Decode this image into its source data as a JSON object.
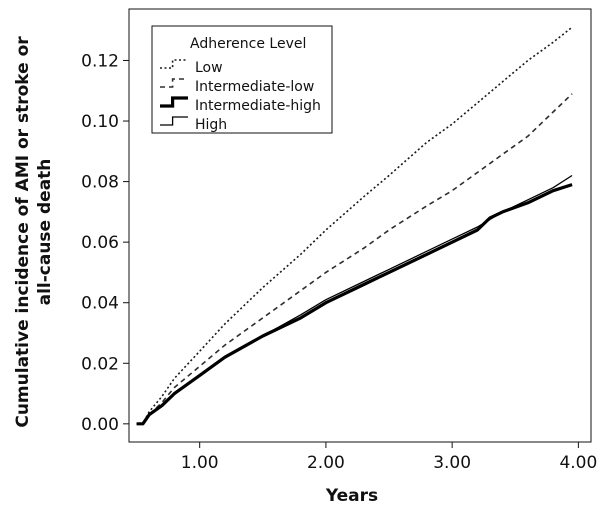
{
  "chart_data": {
    "type": "line",
    "title": "",
    "xlabel": "Years",
    "ylabel_lines": [
      "Cumulative incidence of AMI or stroke or",
      "all-cause death"
    ],
    "xlim": [
      0.44,
      4.1
    ],
    "ylim": [
      -0.006,
      0.137
    ],
    "xticks": [
      1.0,
      2.0,
      3.0,
      4.0
    ],
    "xtick_labels": [
      "1.00",
      "2.00",
      "3.00",
      "4.00"
    ],
    "yticks": [
      0.0,
      0.02,
      0.04,
      0.06,
      0.08,
      0.1,
      0.12
    ],
    "ytick_labels": [
      "0.00",
      "0.02",
      "0.04",
      "0.06",
      "0.08",
      "0.10",
      "0.12"
    ],
    "grid": false,
    "legend": {
      "title": "Adherence Level",
      "position": "top-left"
    },
    "series": [
      {
        "name": "Low",
        "style": "dotted",
        "color": "#1a1a1a",
        "x": [
          0.5,
          0.55,
          0.6,
          0.7,
          0.8,
          1.0,
          1.2,
          1.5,
          1.8,
          2.0,
          2.3,
          2.5,
          2.8,
          3.0,
          3.2,
          3.4,
          3.6,
          3.8,
          3.95
        ],
        "y": [
          0.0,
          0.0,
          0.004,
          0.009,
          0.015,
          0.024,
          0.033,
          0.045,
          0.056,
          0.064,
          0.075,
          0.082,
          0.093,
          0.099,
          0.106,
          0.113,
          0.12,
          0.126,
          0.131
        ]
      },
      {
        "name": "Intermediate-low",
        "style": "dashed",
        "color": "#2e2e2e",
        "x": [
          0.5,
          0.55,
          0.6,
          0.7,
          0.8,
          1.0,
          1.2,
          1.5,
          1.8,
          2.0,
          2.3,
          2.5,
          2.8,
          3.0,
          3.2,
          3.4,
          3.6,
          3.8,
          3.95
        ],
        "y": [
          0.0,
          0.0,
          0.003,
          0.007,
          0.012,
          0.019,
          0.026,
          0.035,
          0.044,
          0.05,
          0.058,
          0.064,
          0.072,
          0.077,
          0.083,
          0.089,
          0.095,
          0.103,
          0.109
        ]
      },
      {
        "name": "Intermediate-high",
        "style": "thick-solid",
        "color": "#000000",
        "x": [
          0.5,
          0.55,
          0.6,
          0.7,
          0.8,
          1.0,
          1.2,
          1.5,
          1.8,
          2.0,
          2.3,
          2.5,
          2.8,
          3.0,
          3.2,
          3.3,
          3.4,
          3.6,
          3.8,
          3.95
        ],
        "y": [
          0.0,
          0.0,
          0.003,
          0.006,
          0.01,
          0.016,
          0.022,
          0.029,
          0.035,
          0.04,
          0.046,
          0.05,
          0.056,
          0.06,
          0.064,
          0.068,
          0.07,
          0.073,
          0.077,
          0.079
        ]
      },
      {
        "name": "High",
        "style": "solid",
        "color": "#000000",
        "x": [
          0.5,
          0.55,
          0.6,
          0.7,
          0.8,
          1.0,
          1.2,
          1.5,
          1.8,
          2.0,
          2.3,
          2.5,
          2.8,
          3.0,
          3.2,
          3.4,
          3.6,
          3.8,
          3.95
        ],
        "y": [
          0.0,
          0.0,
          0.003,
          0.006,
          0.01,
          0.016,
          0.022,
          0.029,
          0.036,
          0.041,
          0.047,
          0.051,
          0.057,
          0.061,
          0.065,
          0.07,
          0.074,
          0.078,
          0.082
        ]
      }
    ]
  }
}
